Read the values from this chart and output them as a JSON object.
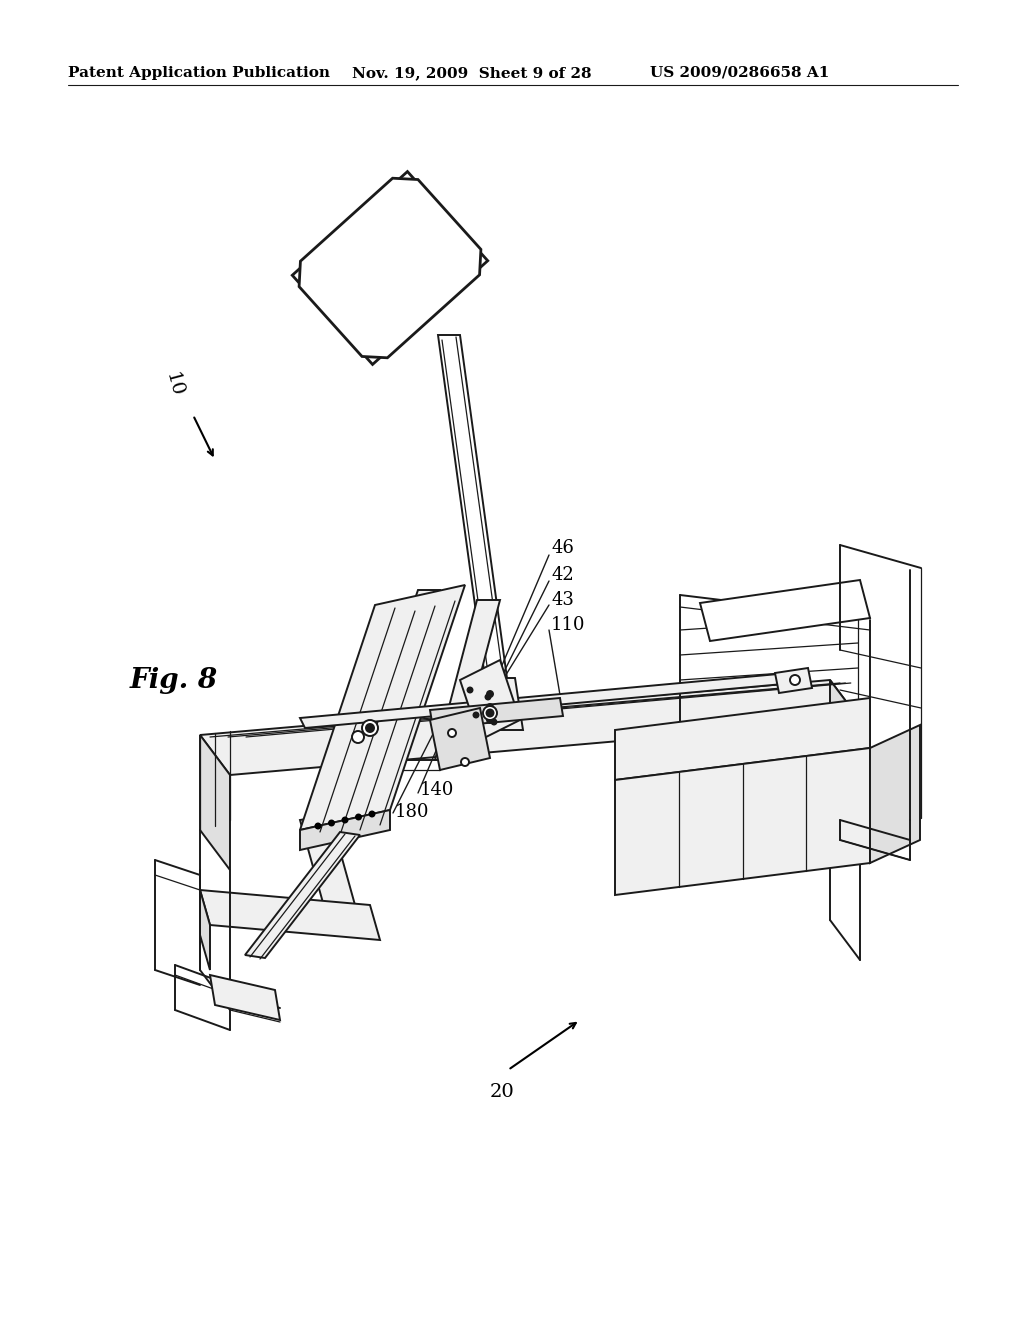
{
  "background_color": "#ffffff",
  "header_left": "Patent Application Publication",
  "header_center": "Nov. 19, 2009  Sheet 9 of 28",
  "header_right": "US 2009/0286658 A1",
  "figure_label": "Fig. 8",
  "ref_10": "10",
  "ref_20": "20",
  "ref_42": "42",
  "ref_43": "43",
  "ref_46": "46",
  "ref_110": "110",
  "ref_140": "140",
  "ref_180": "180",
  "line_color": "#1a1a1a",
  "fill_light": "#f0f0f0",
  "fill_mid": "#e0e0e0",
  "fill_dark": "#c8c8c8"
}
